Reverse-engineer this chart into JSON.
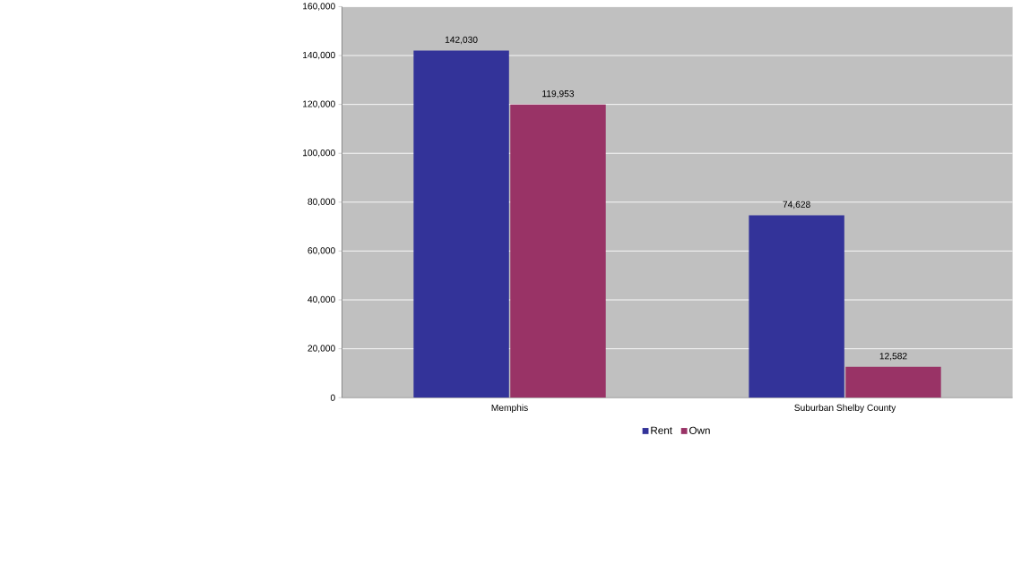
{
  "chart_data": {
    "type": "bar",
    "categories": [
      "Memphis",
      "Suburban Shelby County"
    ],
    "series": [
      {
        "name": "Rent",
        "color": "#333399",
        "values": [
          142030,
          74628
        ],
        "value_labels": [
          "142,030",
          "74,628"
        ]
      },
      {
        "name": "Own",
        "color": "#993366",
        "values": [
          119953,
          12582
        ],
        "value_labels": [
          "119,953",
          "12,582"
        ]
      }
    ],
    "ylim": [
      0,
      160000
    ],
    "yticks": [
      {
        "value": 0,
        "label": "0"
      },
      {
        "value": 20000,
        "label": "20,000"
      },
      {
        "value": 40000,
        "label": "40,000"
      },
      {
        "value": 60000,
        "label": "60,000"
      },
      {
        "value": 80000,
        "label": "80,000"
      },
      {
        "value": 100000,
        "label": "100,000"
      },
      {
        "value": 120000,
        "label": "120,000"
      },
      {
        "value": 140000,
        "label": "140,000"
      },
      {
        "value": 160000,
        "label": "160,000"
      }
    ],
    "grid": "y",
    "legend": "bottom"
  }
}
